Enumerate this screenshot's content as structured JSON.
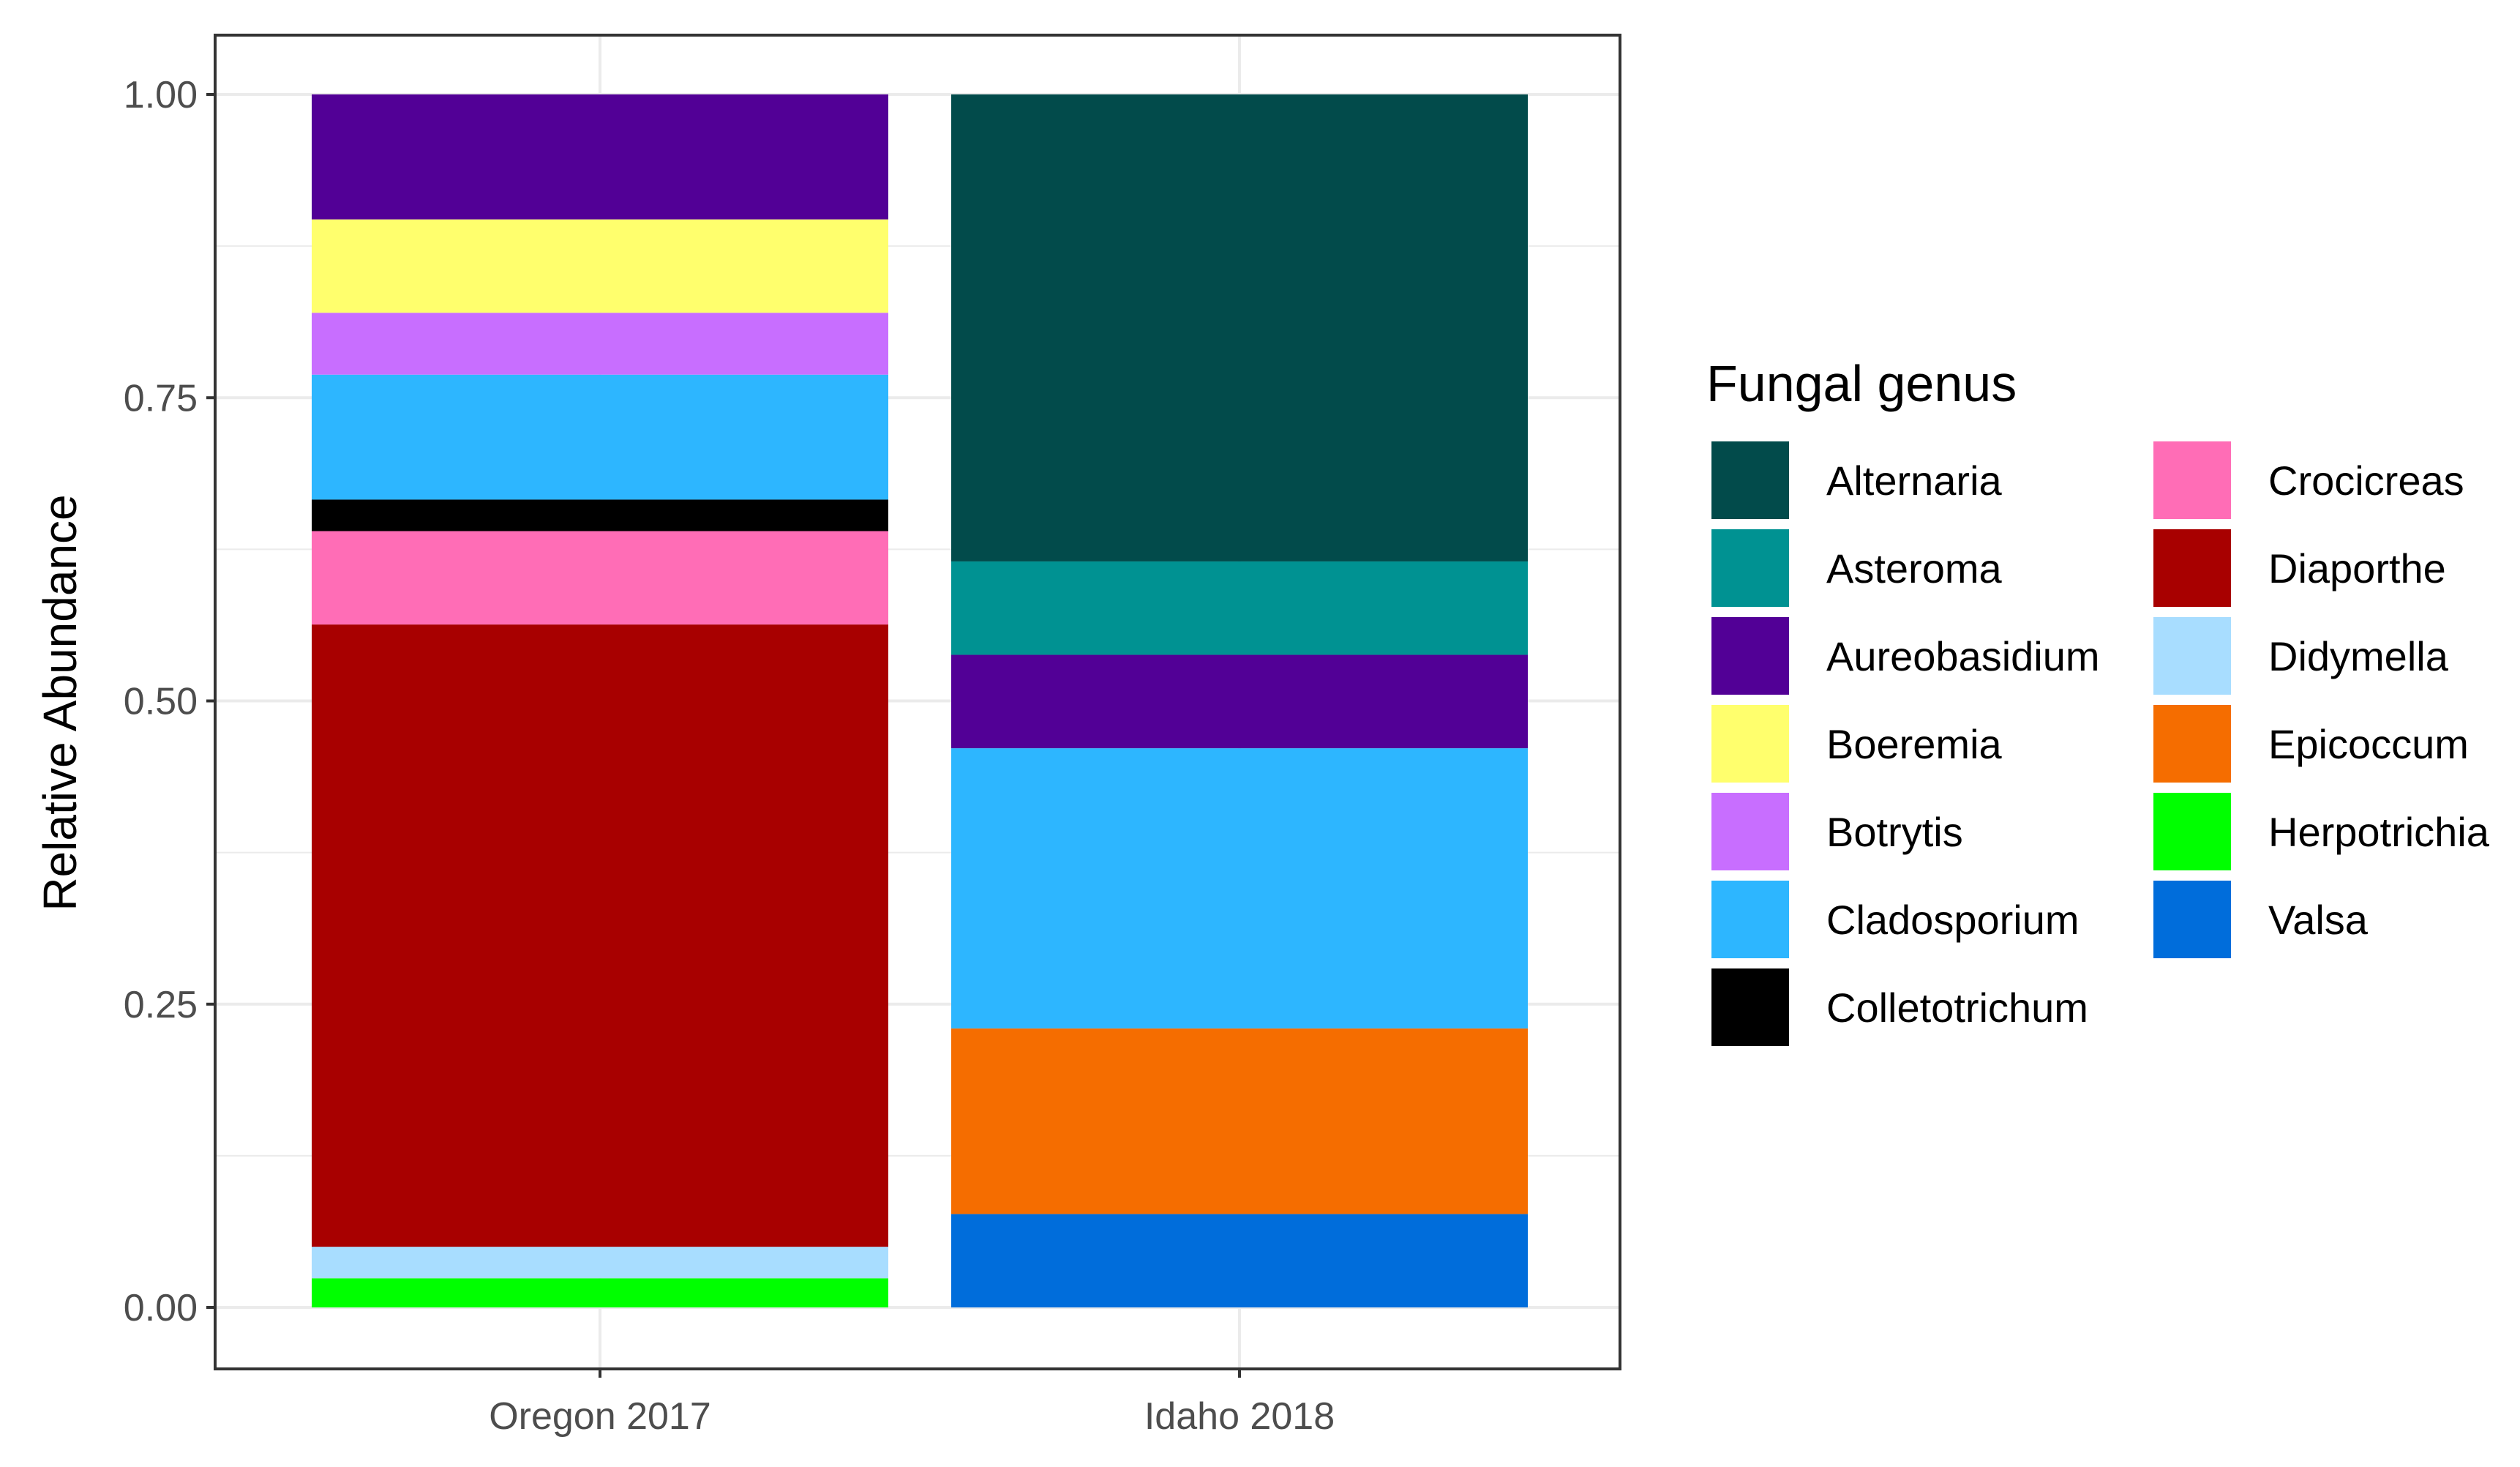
{
  "chart_data": {
    "type": "bar",
    "stacked": true,
    "title": "",
    "xlabel": "",
    "ylabel": "Relative Abundance",
    "ylim": [
      0,
      1.1
    ],
    "yticks": [
      {
        "value": 0,
        "label": "0.00"
      },
      {
        "value": 0.25,
        "label": "0.25"
      },
      {
        "value": 0.5,
        "label": "0.50"
      },
      {
        "value": 0.75,
        "label": "0.75"
      },
      {
        "value": 1.0,
        "label": "1.00"
      }
    ],
    "categories": [
      "Oregon 2017",
      "Idaho 2018"
    ],
    "legend_title": "Fungal genus",
    "series": [
      {
        "name": "Alternaria",
        "color": "#024B4B",
        "values": [
          0,
          0.385
        ]
      },
      {
        "name": "Asteroma",
        "color": "#009292",
        "values": [
          0,
          0.077
        ]
      },
      {
        "name": "Aureobasidium",
        "color": "#520096",
        "values": [
          0.103,
          0.077
        ]
      },
      {
        "name": "Boeremia",
        "color": "#FFFF6D",
        "values": [
          0.077,
          0
        ]
      },
      {
        "name": "Botrytis",
        "color": "#C86EFF",
        "values": [
          0.051,
          0
        ]
      },
      {
        "name": "Cladosporium",
        "color": "#2DB6FF",
        "values": [
          0.103,
          0.231
        ]
      },
      {
        "name": "Colletotrichum",
        "color": "#000000",
        "values": [
          0.026,
          0
        ]
      },
      {
        "name": "Crocicreas",
        "color": "#FF6DB6",
        "values": [
          0.077,
          0
        ]
      },
      {
        "name": "Diaporthe",
        "color": "#A80000",
        "values": [
          0.513,
          0
        ]
      },
      {
        "name": "Didymella",
        "color": "#A8DDFF",
        "values": [
          0.026,
          0
        ]
      },
      {
        "name": "Epicoccum",
        "color": "#F56D00",
        "values": [
          0,
          0.153
        ]
      },
      {
        "name": "Herpotrichia",
        "color": "#00FF00",
        "values": [
          0.024,
          0
        ]
      },
      {
        "name": "Valsa",
        "color": "#006DDB",
        "values": [
          0,
          0.077
        ]
      }
    ]
  }
}
